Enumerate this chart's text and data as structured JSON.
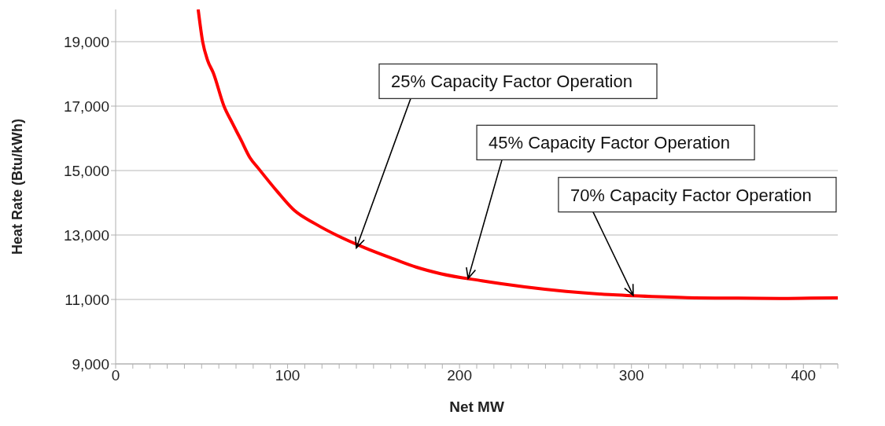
{
  "chart_data": {
    "type": "line",
    "xlabel": "Net MW",
    "ylabel": "Heat Rate (Btu/kWh)",
    "series": [
      {
        "color": "#ff0000",
        "x": [
          48,
          50.6,
          53.5,
          56.8,
          63,
          68,
          73,
          78,
          83,
          94,
          104,
          116,
          129,
          145,
          161,
          175,
          189,
          213,
          238,
          262,
          287,
          312,
          337,
          362,
          386,
          404,
          420
        ],
        "values": [
          20000,
          19000,
          18420,
          18030,
          17000,
          16460,
          15940,
          15410,
          15070,
          14350,
          13760,
          13350,
          12980,
          12600,
          12270,
          12000,
          11800,
          11580,
          11390,
          11250,
          11150,
          11090,
          11050,
          11040,
          11030,
          11040,
          11050
        ]
      }
    ],
    "xlim": [
      0,
      420
    ],
    "xticks": [
      0,
      {
        "value": 10,
        "label": null
      },
      {
        "value": 20,
        "label": null
      },
      {
        "value": 30,
        "label": null
      },
      {
        "value": 40,
        "label": null
      },
      {
        "value": 50,
        "label": null
      },
      {
        "value": 60,
        "label": null
      },
      {
        "value": 70,
        "label": null
      },
      {
        "value": 80,
        "label": null
      },
      {
        "value": 90,
        "label": null
      },
      100,
      {
        "value": 110,
        "label": null
      },
      {
        "value": 120,
        "label": null
      },
      {
        "value": 130,
        "label": null
      },
      {
        "value": 140,
        "label": null
      },
      {
        "value": 150,
        "label": null
      },
      {
        "value": 160,
        "label": null
      },
      {
        "value": 170,
        "label": null
      },
      {
        "value": 180,
        "label": null
      },
      {
        "value": 190,
        "label": null
      },
      200,
      {
        "value": 210,
        "label": null
      },
      {
        "value": 220,
        "label": null
      },
      {
        "value": 230,
        "label": null
      },
      {
        "value": 240,
        "label": null
      },
      {
        "value": 250,
        "label": null
      },
      {
        "value": 260,
        "label": null
      },
      {
        "value": 270,
        "label": null
      },
      {
        "value": 280,
        "label": null
      },
      {
        "value": 290,
        "label": null
      },
      300,
      {
        "value": 310,
        "label": null
      },
      {
        "value": 320,
        "label": null
      },
      {
        "value": 330,
        "label": null
      },
      {
        "value": 340,
        "label": null
      },
      {
        "value": 350,
        "label": null
      },
      {
        "value": 360,
        "label": null
      },
      {
        "value": 370,
        "label": null
      },
      {
        "value": 380,
        "label": null
      },
      {
        "value": 390,
        "label": null
      },
      400,
      {
        "value": 410,
        "label": null
      },
      {
        "value": 420,
        "label": null
      }
    ],
    "ylim": [
      9000,
      20000
    ],
    "yticks": [
      {
        "value": 9000,
        "label": "9,000"
      },
      {
        "value": 11000,
        "label": "11,000"
      },
      {
        "value": 13000,
        "label": "13,000"
      },
      {
        "value": 15000,
        "label": "15,000"
      },
      {
        "value": 17000,
        "label": "17,000"
      },
      {
        "value": 19000,
        "label": "19,000"
      }
    ],
    "grid": "y",
    "legend": false,
    "marker": "none",
    "line_style": "solid",
    "annotations": [
      {
        "text": "25% Capacity Factor Operation",
        "x": 140,
        "y": 12600
      },
      {
        "text": "45% Capacity Factor Operation",
        "x": 205,
        "y": 11650
      },
      {
        "text": "70% Capacity Factor Operation",
        "x": 301,
        "y": 11130
      }
    ]
  }
}
